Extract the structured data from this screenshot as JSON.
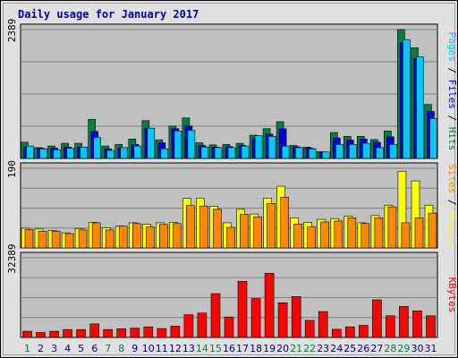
{
  "title": "Daily usage for January 2017",
  "colors": {
    "hits": "#008040",
    "files": "#0000e0",
    "pages": "#00c8f8",
    "visits": "#ffff00",
    "sites": "#ff8800",
    "kbytes": "#ff0000",
    "weekday_label": "#000080",
    "weekend_label": "#008040",
    "plot_bg": "#c0c0c0",
    "frame_bg": "#e0e0e0"
  },
  "days": [
    "1",
    "2",
    "3",
    "4",
    "5",
    "6",
    "7",
    "8",
    "9",
    "10",
    "11",
    "12",
    "13",
    "14",
    "15",
    "16",
    "17",
    "18",
    "19",
    "20",
    "21",
    "22",
    "23",
    "24",
    "25",
    "26",
    "27",
    "28",
    "29",
    "30",
    "31"
  ],
  "weekend_days": [
    "1",
    "7",
    "8",
    "14",
    "15",
    "21",
    "22",
    "28",
    "29"
  ],
  "chart_data": [
    {
      "type": "bar",
      "panel": "top",
      "ymax_label": "2389",
      "ylim": [
        0,
        2389
      ],
      "right_label_parts": [
        {
          "text": "Pages",
          "color": "#00c8f8"
        },
        {
          "text": " / ",
          "color": "#000000"
        },
        {
          "text": "Files",
          "color": "#0000e0"
        },
        {
          "text": " / ",
          "color": "#000000"
        },
        {
          "text": "Hits",
          "color": "#008040"
        }
      ],
      "series": [
        {
          "name": "Hits",
          "color": "#008040",
          "values": [
            300,
            200,
            230,
            280,
            280,
            725,
            230,
            260,
            360,
            700,
            345,
            600,
            750,
            290,
            250,
            260,
            280,
            430,
            550,
            680,
            240,
            210,
            125,
            480,
            410,
            410,
            350,
            510,
            2389,
            2050,
            1000
          ]
        },
        {
          "name": "Files",
          "color": "#0000e0",
          "values": [
            210,
            190,
            190,
            210,
            210,
            500,
            180,
            190,
            260,
            550,
            290,
            550,
            600,
            240,
            210,
            220,
            240,
            370,
            450,
            550,
            215,
            190,
            120,
            380,
            340,
            360,
            300,
            400,
            2150,
            1850,
            870
          ]
        },
        {
          "name": "Pages",
          "color": "#00c8f8",
          "values": [
            230,
            180,
            160,
            190,
            210,
            390,
            150,
            200,
            230,
            560,
            180,
            510,
            520,
            210,
            200,
            200,
            230,
            420,
            410,
            230,
            200,
            180,
            120,
            260,
            260,
            280,
            200,
            260,
            2200,
            1880,
            740
          ]
        }
      ]
    },
    {
      "type": "bar",
      "panel": "middle",
      "ymax_label": "190",
      "ylim": [
        0,
        190
      ],
      "right_label_parts": [
        {
          "text": "Sites",
          "color": "#ff8800"
        },
        {
          "text": " / ",
          "color": "#000000"
        },
        {
          "text": "Visits",
          "color": "#ffff00"
        }
      ],
      "series": [
        {
          "name": "Visits",
          "color": "#ffff00",
          "values": [
            47,
            45,
            42,
            36,
            46,
            61,
            48,
            52,
            60,
            57,
            60,
            61,
            118,
            119,
            99,
            60,
            92,
            81,
            119,
            147,
            72,
            61,
            68,
            70,
            76,
            60,
            77,
            102,
            183,
            160,
            102
          ]
        },
        {
          "name": "Sites",
          "color": "#ff8800",
          "values": [
            44,
            40,
            40,
            34,
            43,
            60,
            43,
            52,
            58,
            50,
            56,
            58,
            101,
            100,
            92,
            49,
            80,
            74,
            106,
            121,
            57,
            50,
            62,
            64,
            72,
            58,
            72,
            98,
            60,
            72,
            83
          ]
        }
      ]
    },
    {
      "type": "bar",
      "panel": "bottom",
      "ymax_label": "32389",
      "ylim": [
        0,
        32389
      ],
      "right_label_parts": [
        {
          "text": "KBytes",
          "color": "#ff0000"
        }
      ],
      "series": [
        {
          "name": "KBytes",
          "color": "#ff0000",
          "values": [
            2500,
            2000,
            2500,
            3200,
            3200,
            5500,
            3200,
            3500,
            3800,
            4300,
            3600,
            4600,
            9200,
            9900,
            17800,
            8300,
            22800,
            15800,
            26100,
            14100,
            16600,
            6900,
            10500,
            3300,
            4300,
            4900,
            15300,
            8800,
            12600,
            10800,
            8800
          ]
        }
      ]
    }
  ]
}
